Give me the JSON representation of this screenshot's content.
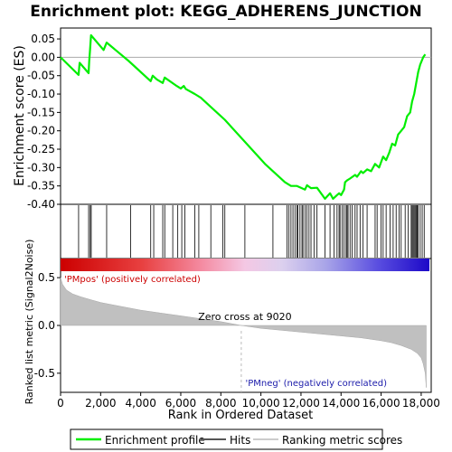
{
  "chart_data": {
    "type": "line",
    "title": "Enrichment plot: KEGG_ADHERENS_JUNCTION",
    "xlabel": "Rank in Ordered Dataset",
    "ylabel_top": "Enrichment score (ES)",
    "ylabel_bottom": "Ranked list metric (Signal2Noise)",
    "xlim": [
      0,
      18500
    ],
    "x_ticks": [
      0,
      2000,
      4000,
      6000,
      8000,
      10000,
      12000,
      14000,
      16000,
      18000
    ],
    "x_tick_labels": [
      "0",
      "2,000",
      "4,000",
      "6,000",
      "8,000",
      "10,000",
      "12,000",
      "14,000",
      "16,000",
      "18,000"
    ],
    "es_ylim": [
      -0.4,
      0.06
    ],
    "es_ticks": [
      0.05,
      0.0,
      -0.05,
      -0.1,
      -0.15,
      -0.2,
      -0.25,
      -0.3,
      -0.35,
      -0.4
    ],
    "es_tick_labels": [
      "0.05",
      "0.00",
      "-0.05",
      "-0.10",
      "-0.15",
      "-0.20",
      "-0.25",
      "-0.30",
      "-0.35",
      "-0.40"
    ],
    "metric_ylim": [
      -0.7,
      0.7
    ],
    "metric_ticks": [
      0.5,
      0.0,
      -0.5
    ],
    "metric_tick_labels": [
      "0.5",
      "0.0",
      "-0.5"
    ],
    "series": [
      {
        "name": "Enrichment profile",
        "color": "#00ff00",
        "x": [
          0,
          900,
          950,
          1400,
          1430,
          1470,
          1520,
          2150,
          2300,
          3400,
          3500,
          4500,
          4600,
          4800,
          5100,
          5200,
          5800,
          6000,
          6150,
          6250,
          6700,
          7000,
          7500,
          8200,
          9200,
          10200,
          11200,
          11500,
          11800,
          12200,
          12300,
          12500,
          12800,
          13200,
          13450,
          13600,
          13800,
          13900,
          14000,
          14150,
          14200,
          14300,
          14450,
          14700,
          14800,
          15000,
          15100,
          15300,
          15500,
          15700,
          15900,
          16100,
          16250,
          16400,
          16550,
          16700,
          16850,
          17000,
          17150,
          17300,
          17450,
          17550,
          17650,
          17750,
          17850,
          17950,
          18100,
          18200
        ],
        "y": [
          0.0,
          -0.048,
          -0.015,
          -0.043,
          -0.01,
          0.02,
          0.06,
          0.02,
          0.04,
          -0.01,
          -0.015,
          -0.065,
          -0.05,
          -0.06,
          -0.07,
          -0.055,
          -0.078,
          -0.085,
          -0.078,
          -0.086,
          -0.1,
          -0.11,
          -0.135,
          -0.17,
          -0.23,
          -0.29,
          -0.34,
          -0.35,
          -0.35,
          -0.36,
          -0.348,
          -0.356,
          -0.355,
          -0.385,
          -0.37,
          -0.385,
          -0.375,
          -0.37,
          -0.375,
          -0.36,
          -0.34,
          -0.335,
          -0.33,
          -0.32,
          -0.325,
          -0.31,
          -0.315,
          -0.305,
          -0.31,
          -0.29,
          -0.3,
          -0.27,
          -0.28,
          -0.26,
          -0.235,
          -0.24,
          -0.21,
          -0.2,
          -0.19,
          -0.16,
          -0.15,
          -0.12,
          -0.1,
          -0.07,
          -0.04,
          -0.02,
          0.0,
          0.008
        ]
      },
      {
        "name": "Hits",
        "color": "#000000",
        "positions": [
          900,
          1400,
          1480,
          1530,
          2300,
          3500,
          4500,
          4650,
          5100,
          5200,
          5600,
          5850,
          6050,
          6200,
          6700,
          6900,
          7500,
          8100,
          8200,
          9200,
          10600,
          11300,
          11400,
          11500,
          11600,
          11700,
          11800,
          11850,
          11950,
          12050,
          12100,
          12200,
          12300,
          12400,
          12500,
          12650,
          12800,
          13200,
          13450,
          13650,
          13800,
          13900,
          13950,
          14050,
          14150,
          14250,
          14300,
          14350,
          14450,
          14550,
          14700,
          14800,
          14950,
          15100,
          15300,
          15700,
          15800,
          16000,
          16100,
          16250,
          16450,
          16600,
          16750,
          16900,
          17000,
          17200,
          17350,
          17500,
          17550,
          17600,
          17650,
          17700,
          17750,
          17800,
          17850,
          17950,
          18050,
          18150
        ]
      },
      {
        "name": "Ranking metric scores",
        "color": "#bebebe",
        "x": [
          0,
          100,
          300,
          600,
          1000,
          1500,
          2000,
          3000,
          4000,
          5000,
          6000,
          7000,
          8000,
          9020,
          10000,
          11000,
          12000,
          13000,
          14000,
          15000,
          16000,
          16500,
          17000,
          17500,
          17800,
          18000,
          18100,
          18200,
          18250
        ],
        "y": [
          0.5,
          0.43,
          0.37,
          0.33,
          0.3,
          0.27,
          0.24,
          0.2,
          0.16,
          0.13,
          0.1,
          0.07,
          0.04,
          0.0,
          -0.03,
          -0.05,
          -0.07,
          -0.09,
          -0.11,
          -0.13,
          -0.16,
          -0.18,
          -0.21,
          -0.25,
          -0.29,
          -0.34,
          -0.4,
          -0.5,
          -0.65
        ]
      }
    ],
    "zero_cross_label": "Zero cross at 9020",
    "zero_cross_x": 9020,
    "pos_label": "'PMpos' (positively correlated)",
    "neg_label": "'PMneg' (negatively correlated)",
    "legend_placement": "bottom",
    "grid": false
  }
}
